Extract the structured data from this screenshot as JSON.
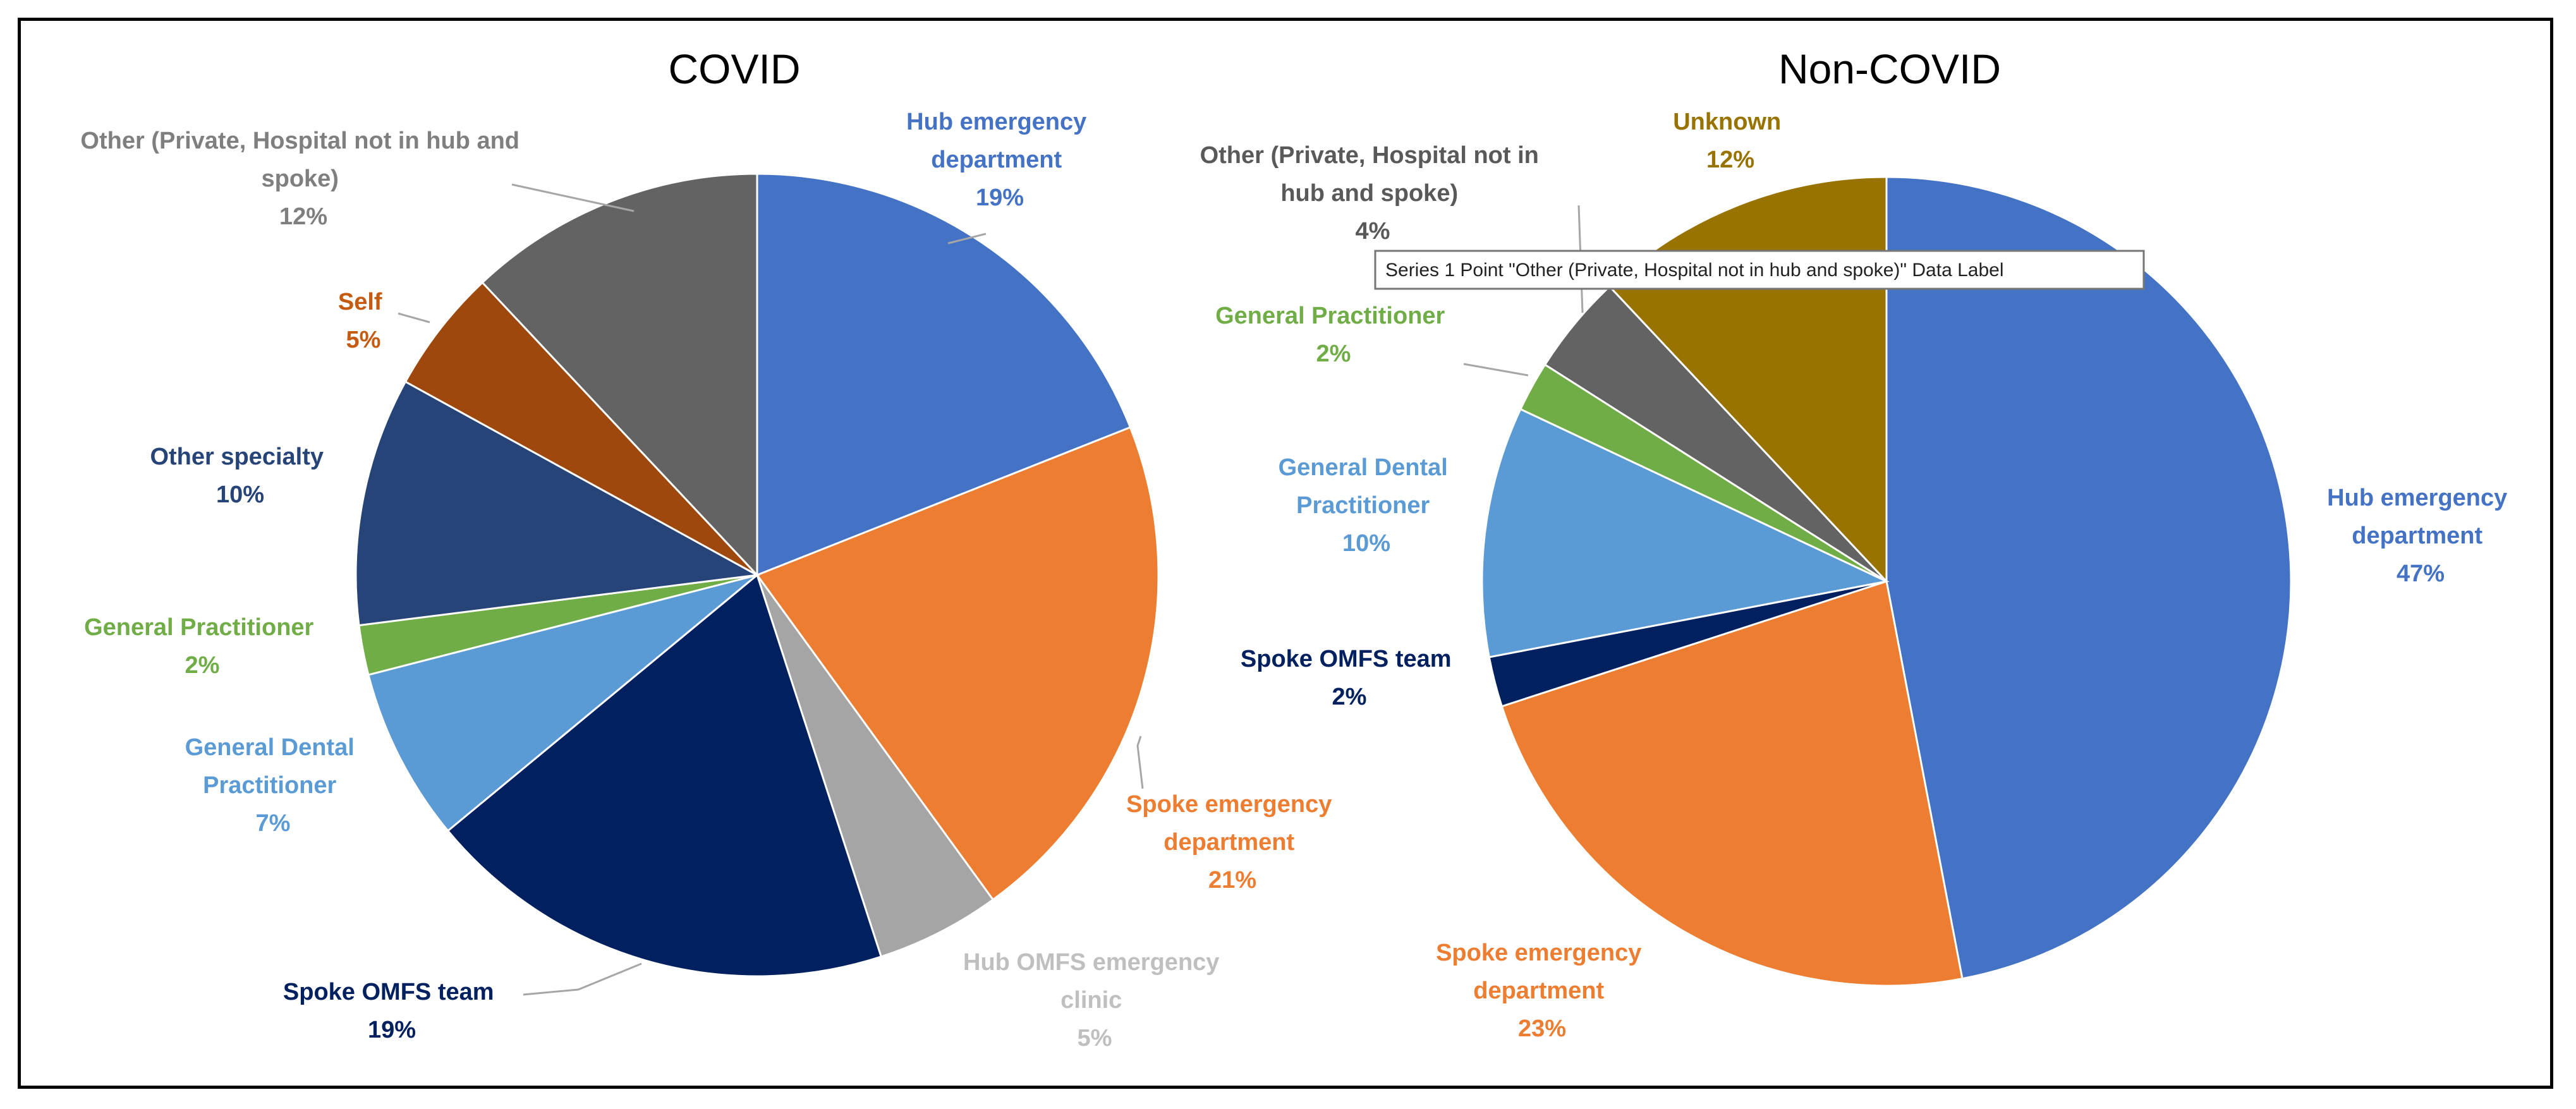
{
  "chart_data": [
    {
      "type": "pie",
      "title": "COVID",
      "slices": [
        {
          "name": "Hub emergency department",
          "value": 19,
          "label": "19%",
          "color": "#4472C4"
        },
        {
          "name": "Spoke emergency department",
          "value": 21,
          "label": "21%",
          "color": "#ED7D31"
        },
        {
          "name": "Hub OMFS emergency clinic",
          "value": 5,
          "label": "5%",
          "color": "#A5A5A5"
        },
        {
          "name": "Spoke OMFS team",
          "value": 19,
          "label": "19%",
          "color": "#002060"
        },
        {
          "name": "General Dental Practitioner",
          "value": 7,
          "label": "7%",
          "color": "#5B9BD5"
        },
        {
          "name": "General Practitioner",
          "value": 2,
          "label": "2%",
          "color": "#70AD47"
        },
        {
          "name": "Other specialty",
          "value": 10,
          "label": "10%",
          "color": "#264478"
        },
        {
          "name": "Self",
          "value": 5,
          "label": "5%",
          "color": "#9E480E"
        },
        {
          "name": "Other (Private, Hospital not in hub and spoke)",
          "value": 12,
          "label": "12%",
          "color": "#636363"
        }
      ]
    },
    {
      "type": "pie",
      "title": "Non-COVID",
      "slices": [
        {
          "name": "Hub emergency department",
          "value": 47,
          "label": "47%",
          "color": "#4472C4"
        },
        {
          "name": "Spoke emergency department",
          "value": 23,
          "label": "23%",
          "color": "#ED7D31"
        },
        {
          "name": "Spoke OMFS team",
          "value": 2,
          "label": "2%",
          "color": "#002060"
        },
        {
          "name": "General Dental Practitioner",
          "value": 10,
          "label": "10%",
          "color": "#5B9BD5"
        },
        {
          "name": "General Practitioner",
          "value": 2,
          "label": "2%",
          "color": "#70AD47"
        },
        {
          "name": "Other (Private, Hospital not in hub and spoke)",
          "value": 4,
          "label": "4%",
          "color": "#636363"
        },
        {
          "name": "Unknown",
          "value": 12,
          "label": "12%",
          "color": "#997300"
        }
      ]
    }
  ],
  "labels": {
    "covid": {
      "hub_ed": {
        "lines": [
          "Hub emergency",
          "department",
          "19%"
        ],
        "color": "#4472C4"
      },
      "spoke_ed": {
        "lines": [
          "Spoke emergency",
          "department",
          "21%"
        ],
        "color": "#ED7D31"
      },
      "hub_omfs": {
        "lines": [
          "Hub OMFS emergency",
          "clinic",
          "5%"
        ],
        "color": "#BFBFBF"
      },
      "spoke_omfs": {
        "lines": [
          "Spoke OMFS team",
          "19%"
        ],
        "color": "#002060"
      },
      "gdp": {
        "lines": [
          "General Dental",
          "Practitioner",
          "7%"
        ],
        "color": "#5B9BD5"
      },
      "gp": {
        "lines": [
          "General Practitioner",
          "2%"
        ],
        "color": "#70AD47"
      },
      "other_spec": {
        "lines": [
          "Other specialty",
          "10%"
        ],
        "color": "#264478"
      },
      "self": {
        "lines": [
          "Self",
          "5%"
        ],
        "color": "#C55A11"
      },
      "other_private": {
        "lines": [
          "Other (Private, Hospital not in hub and",
          "spoke)",
          "12%"
        ],
        "color": "#7F7F7F"
      }
    },
    "noncovid": {
      "hub_ed": {
        "lines": [
          "Hub emergency",
          "department",
          "47%"
        ],
        "color": "#4472C4"
      },
      "spoke_ed": {
        "lines": [
          "Spoke emergency",
          "department",
          "23%"
        ],
        "color": "#ED7D31"
      },
      "spoke_omfs": {
        "lines": [
          "Spoke OMFS team",
          "2%"
        ],
        "color": "#002060"
      },
      "gdp": {
        "lines": [
          "General Dental",
          "Practitioner",
          "10%"
        ],
        "color": "#5B9BD5"
      },
      "gp": {
        "lines": [
          "General Practitioner",
          "2%"
        ],
        "color": "#70AD47"
      },
      "other_private": {
        "lines": [
          "Other (Private, Hospital not in",
          "hub and spoke)",
          "4%"
        ],
        "color": "#595959"
      },
      "unknown": {
        "lines": [
          "Unknown",
          "12%"
        ],
        "color": "#997300"
      }
    }
  },
  "tooltip": {
    "text": "Series 1 Point \"Other (Private, Hospital not in hub and spoke)\" Data Label"
  }
}
